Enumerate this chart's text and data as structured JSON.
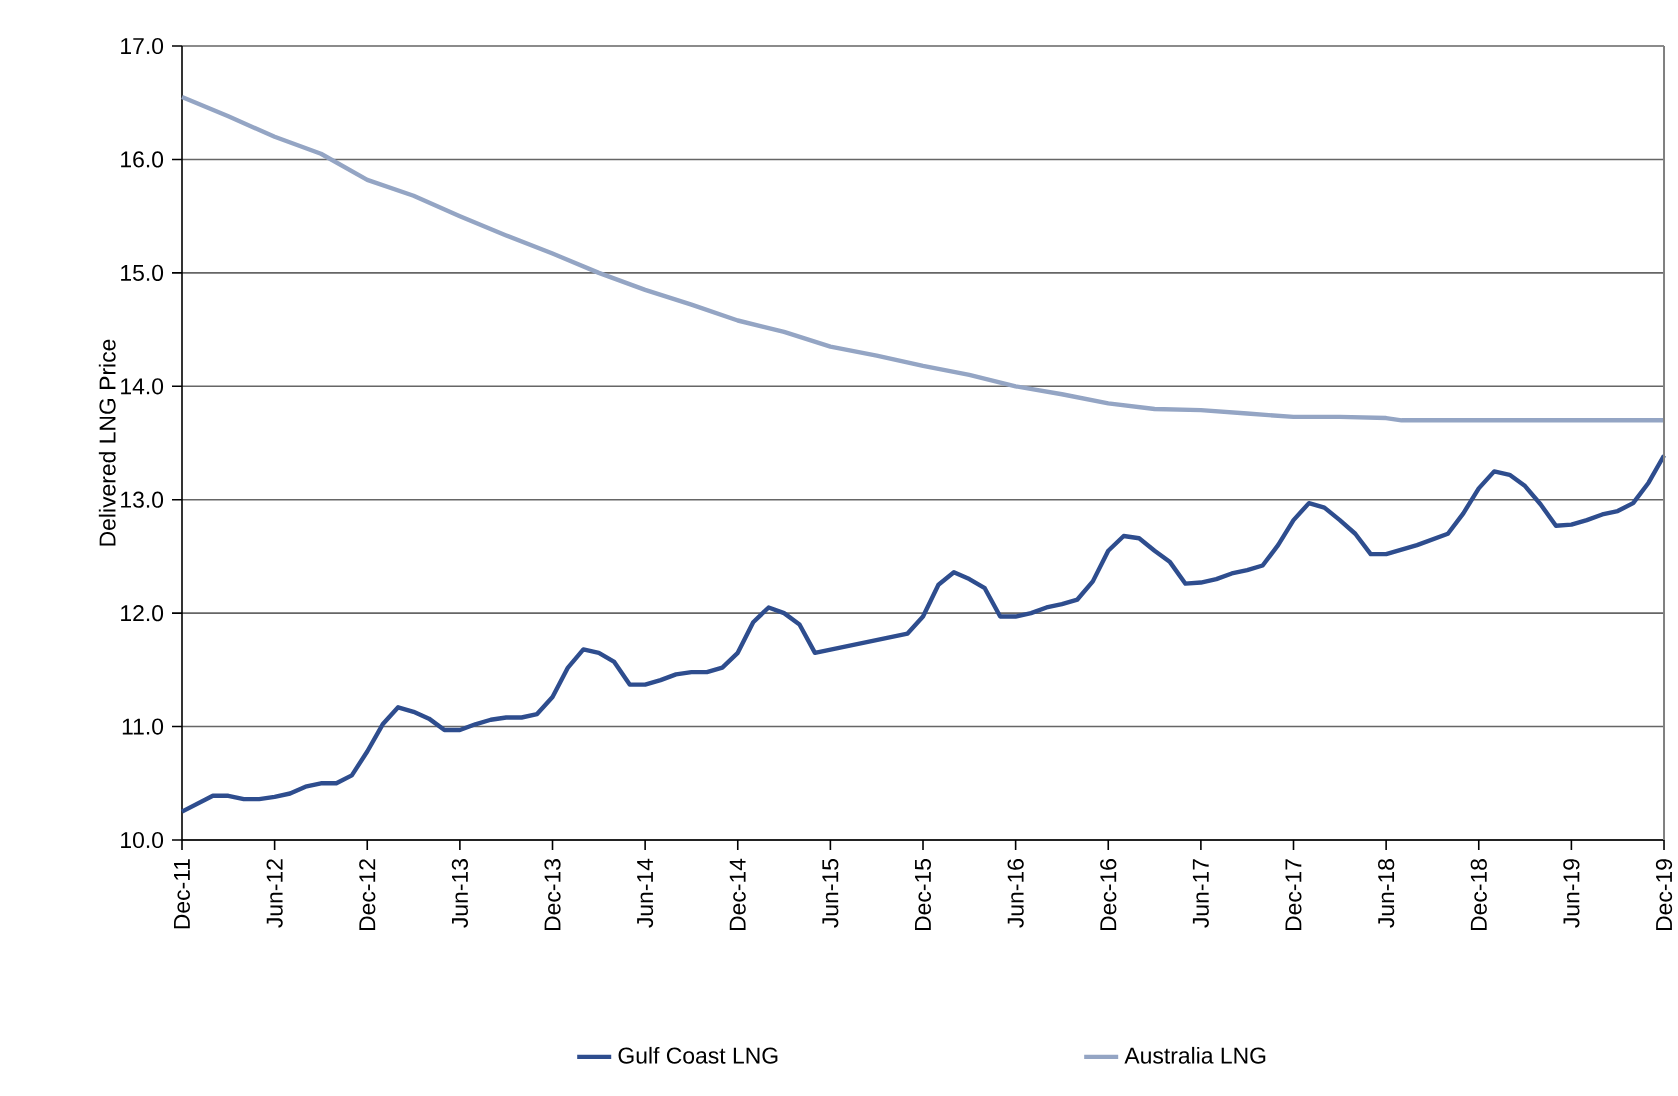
{
  "chart_data": {
    "type": "line",
    "ylabel": "Delivered LNG Price",
    "xlim": [
      "2011-12",
      "2019-12"
    ],
    "xticks": [
      {
        "value": "2011-12",
        "label": "Dec-11"
      },
      {
        "value": "2012-06",
        "label": "Jun-12"
      },
      {
        "value": "2012-12",
        "label": "Dec-12"
      },
      {
        "value": "2013-06",
        "label": "Jun-13"
      },
      {
        "value": "2013-12",
        "label": "Dec-13"
      },
      {
        "value": "2014-06",
        "label": "Jun-14"
      },
      {
        "value": "2014-12",
        "label": "Dec-14"
      },
      {
        "value": "2015-06",
        "label": "Jun-15"
      },
      {
        "value": "2015-12",
        "label": "Dec-15"
      },
      {
        "value": "2016-06",
        "label": "Jun-16"
      },
      {
        "value": "2016-12",
        "label": "Dec-16"
      },
      {
        "value": "2017-06",
        "label": "Jun-17"
      },
      {
        "value": "2017-12",
        "label": "Dec-17"
      },
      {
        "value": "2018-06",
        "label": "Jun-18"
      },
      {
        "value": "2018-12",
        "label": "Dec-18"
      },
      {
        "value": "2019-06",
        "label": "Jun-19"
      },
      {
        "value": "2019-12",
        "label": "Dec-19"
      }
    ],
    "ylim": [
      10,
      17
    ],
    "yticks": [
      {
        "value": 10,
        "label": "10.0"
      },
      {
        "value": 11,
        "label": "11.0"
      },
      {
        "value": 12,
        "label": "12.0"
      },
      {
        "value": 13,
        "label": "13.0"
      },
      {
        "value": 14,
        "label": "14.0"
      },
      {
        "value": 15,
        "label": "15.0"
      },
      {
        "value": 16,
        "label": "16.0"
      },
      {
        "value": 17,
        "label": "17.0"
      }
    ],
    "grid": "y",
    "legend": "bottom",
    "marker": "none",
    "line_style": "solid",
    "series": [
      {
        "name": "Gulf Coast LNG",
        "color": "#2e4d8e",
        "x": [
          "2011-12",
          "2012-02",
          "2012-03",
          "2012-04",
          "2012-05",
          "2012-06",
          "2012-07",
          "2012-08",
          "2012-09",
          "2012-10",
          "2012-11",
          "2012-12",
          "2013-01",
          "2013-02",
          "2013-03",
          "2013-04",
          "2013-05",
          "2013-06",
          "2013-07",
          "2013-08",
          "2013-09",
          "2013-10",
          "2013-11",
          "2013-12",
          "2014-01",
          "2014-02",
          "2014-03",
          "2014-04",
          "2014-05",
          "2014-06",
          "2014-07",
          "2014-08",
          "2014-09",
          "2014-10",
          "2014-11",
          "2014-12",
          "2015-01",
          "2015-02",
          "2015-03",
          "2015-04",
          "2015-05",
          "2015-11",
          "2015-12",
          "2016-01",
          "2016-02",
          "2016-03",
          "2016-04",
          "2016-05",
          "2016-06",
          "2016-07",
          "2016-08",
          "2016-09",
          "2016-10",
          "2016-11",
          "2016-12",
          "2017-01",
          "2017-02",
          "2017-03",
          "2017-04",
          "2017-05",
          "2017-06",
          "2017-07",
          "2017-08",
          "2017-09",
          "2017-10",
          "2017-11",
          "2017-12",
          "2018-01",
          "2018-02",
          "2018-03",
          "2018-04",
          "2018-05",
          "2018-06",
          "2018-07",
          "2018-08",
          "2018-09",
          "2018-10",
          "2018-11",
          "2018-12",
          "2019-01",
          "2019-02",
          "2019-03",
          "2019-04",
          "2019-05",
          "2019-06",
          "2019-07",
          "2019-08",
          "2019-09",
          "2019-10",
          "2019-11",
          "2019-12"
        ],
        "values": [
          10.25,
          10.39,
          10.39,
          10.36,
          10.36,
          10.38,
          10.41,
          10.47,
          10.5,
          10.5,
          10.57,
          10.78,
          11.02,
          11.17,
          11.13,
          11.07,
          10.97,
          10.97,
          11.02,
          11.06,
          11.08,
          11.08,
          11.11,
          11.26,
          11.52,
          11.68,
          11.65,
          11.57,
          11.37,
          11.37,
          11.41,
          11.46,
          11.48,
          11.48,
          11.52,
          11.65,
          11.92,
          12.05,
          12.0,
          11.9,
          11.65,
          11.82,
          11.97,
          12.25,
          12.36,
          12.3,
          12.22,
          11.97,
          11.97,
          12.0,
          12.05,
          12.08,
          12.12,
          12.28,
          12.55,
          12.68,
          12.66,
          12.55,
          12.45,
          12.26,
          12.27,
          12.3,
          12.35,
          12.38,
          12.42,
          12.6,
          12.82,
          12.97,
          12.93,
          12.82,
          12.7,
          12.52,
          12.52,
          12.56,
          12.6,
          12.65,
          12.7,
          12.88,
          13.1,
          13.25,
          13.22,
          13.12,
          12.96,
          12.77,
          12.78,
          12.82,
          12.87,
          12.9,
          12.97,
          13.15,
          13.39
        ]
      },
      {
        "name": "Australia LNG",
        "color": "#94a5c4",
        "x": [
          "2011-12",
          "2012-03",
          "2012-06",
          "2012-09",
          "2012-12",
          "2013-03",
          "2013-06",
          "2013-09",
          "2013-12",
          "2014-03",
          "2014-06",
          "2014-09",
          "2014-12",
          "2015-03",
          "2015-06",
          "2015-09",
          "2015-12",
          "2016-03",
          "2016-06",
          "2016-09",
          "2016-12",
          "2017-03",
          "2017-06",
          "2017-09",
          "2017-12",
          "2018-03",
          "2018-06",
          "2018-07",
          "2019-12"
        ],
        "values": [
          16.55,
          16.38,
          16.2,
          16.05,
          15.82,
          15.68,
          15.5,
          15.33,
          15.17,
          15.0,
          14.85,
          14.72,
          14.58,
          14.48,
          14.35,
          14.27,
          14.18,
          14.1,
          14.0,
          13.93,
          13.85,
          13.8,
          13.79,
          13.76,
          13.73,
          13.73,
          13.72,
          13.7,
          13.7
        ]
      }
    ]
  }
}
